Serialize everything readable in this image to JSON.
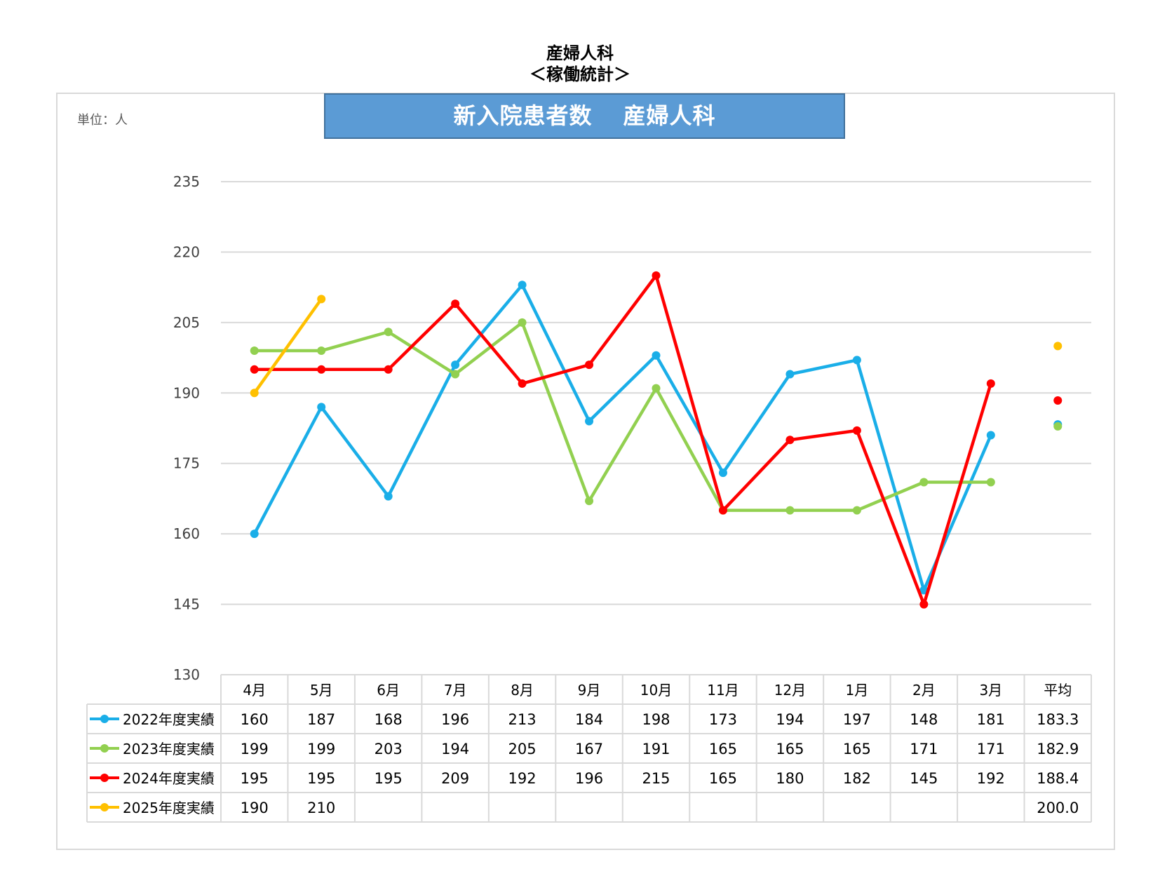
{
  "header": {
    "title_line1": "産婦人科",
    "title_line2": "＜稼働統計＞"
  },
  "unit_label": "単位：人",
  "banner": {
    "part1": "新入院患者数",
    "part2": "産婦人科"
  },
  "chart_data": {
    "type": "line",
    "title": "新入院患者数　産婦人科",
    "categories": [
      "4月",
      "5月",
      "6月",
      "7月",
      "8月",
      "9月",
      "10月",
      "11月",
      "12月",
      "1月",
      "2月",
      "3月"
    ],
    "average_label": "平均",
    "yticks": [
      130,
      145,
      160,
      175,
      190,
      205,
      220,
      235
    ],
    "ylim": [
      130,
      235
    ],
    "grid": true,
    "legend": "data-table-left",
    "series": [
      {
        "name": "2022年度実績",
        "color": "#1aaee8",
        "values": [
          160,
          187,
          168,
          196,
          213,
          184,
          198,
          173,
          194,
          197,
          148,
          181
        ],
        "average": "183.3",
        "average_value": 183.3
      },
      {
        "name": "2023年度実績",
        "color": "#92d050",
        "values": [
          199,
          199,
          203,
          194,
          205,
          167,
          191,
          165,
          165,
          165,
          171,
          171
        ],
        "average": "182.9",
        "average_value": 182.9
      },
      {
        "name": "2024年度実績",
        "color": "#ff0000",
        "values": [
          195,
          195,
          195,
          209,
          192,
          196,
          215,
          165,
          180,
          182,
          145,
          192
        ],
        "average": "188.4",
        "average_value": 188.4
      },
      {
        "name": "2025年度実績",
        "color": "#ffc000",
        "values": [
          190,
          210,
          null,
          null,
          null,
          null,
          null,
          null,
          null,
          null,
          null,
          null
        ],
        "average": "200.0",
        "average_value": 200.0
      }
    ]
  }
}
